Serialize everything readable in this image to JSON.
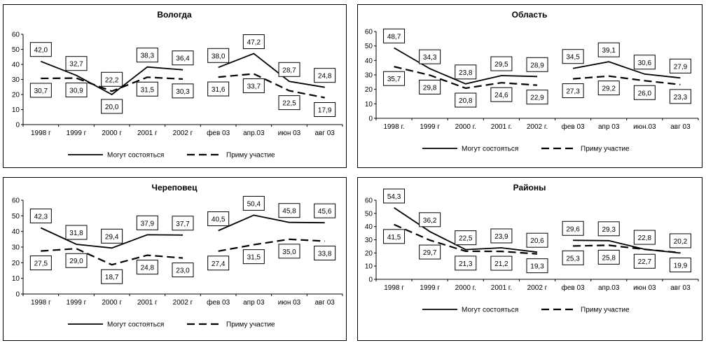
{
  "chart_data": [
    {
      "type": "line",
      "title": "Вологда",
      "categories": [
        "1998 г",
        "1999 г",
        "2000 г",
        "2001 г",
        "2002 г",
        "фев 03",
        "апр.03",
        "июн 03",
        "авг 03"
      ],
      "ylim": [
        0,
        60
      ],
      "yticks": [
        "0",
        "10",
        "20",
        "30",
        "40",
        "50",
        "60"
      ],
      "series": [
        {
          "name": "Могут состояться",
          "style": "solid",
          "values": [
            42.0,
            32.7,
            20.0,
            38.3,
            36.4,
            38.0,
            47.2,
            28.7,
            24.8
          ],
          "labels": [
            "42,0",
            "32,7",
            "20,0",
            "38,3",
            "36,4",
            "38,0",
            "47,2",
            "28,7",
            "24,8"
          ]
        },
        {
          "name": "Приму участие",
          "style": "dashed",
          "values": [
            30.7,
            30.9,
            22.2,
            31.5,
            30.3,
            31.6,
            33.7,
            22.5,
            17.9
          ],
          "labels": [
            "30,7",
            "30,9",
            "22,2",
            "31,5",
            "30,3",
            "31,6",
            "33,7",
            "22,5",
            "17,9"
          ]
        }
      ],
      "legend": [
        "Могут состояться",
        "Приму участие"
      ]
    },
    {
      "type": "line",
      "title": "Область",
      "categories": [
        "1998 г.",
        "1999 г",
        "2000 г.",
        "2001 г.",
        "2002 г.",
        "фев 03",
        "апр 03",
        "июн.03",
        "авг 03"
      ],
      "ylim": [
        0,
        60
      ],
      "yticks": [
        "0",
        "10",
        "20",
        "30",
        "40",
        "50",
        "60"
      ],
      "series": [
        {
          "name": "Могут состояться",
          "style": "solid",
          "values": [
            48.7,
            34.3,
            23.8,
            29.5,
            28.9,
            34.5,
            39.1,
            30.6,
            27.9
          ],
          "labels": [
            "48,7",
            "34,3",
            "23,8",
            "29,5",
            "28,9",
            "34,5",
            "39,1",
            "30,6",
            "27,9"
          ]
        },
        {
          "name": "Приму участие",
          "style": "dashed",
          "values": [
            35.7,
            29.8,
            20.8,
            24.6,
            22.9,
            27.3,
            29.2,
            26.0,
            23.3
          ],
          "labels": [
            "35,7",
            "29,8",
            "20,8",
            "24,6",
            "22,9",
            "27,3",
            "29,2",
            "26,0",
            "23,3"
          ]
        }
      ],
      "legend": [
        "Могут состояться",
        "Приму участие"
      ]
    },
    {
      "type": "line",
      "title": "Череповец",
      "categories": [
        "1998 г",
        "1999 г",
        "2000 г",
        "2001 г",
        "2002 г",
        "фев 03",
        "апр 03",
        "июн 03",
        "авг 03"
      ],
      "ylim": [
        0,
        60
      ],
      "yticks": [
        "0",
        "10",
        "20",
        "30",
        "40",
        "50",
        "60"
      ],
      "series": [
        {
          "name": "Могут состояться",
          "style": "solid",
          "values": [
            42.3,
            31.8,
            29.4,
            37.9,
            37.7,
            40.5,
            50.4,
            45.8,
            45.6
          ],
          "labels": [
            "42,3",
            "31,8",
            "29,4",
            "37,9",
            "37,7",
            "40,5",
            "50,4",
            "45,8",
            "45,6"
          ]
        },
        {
          "name": "Приму участие",
          "style": "dashed",
          "values": [
            27.5,
            29.0,
            18.7,
            24.8,
            23.0,
            27.4,
            31.5,
            35.0,
            33.8
          ],
          "labels": [
            "27,5",
            "29,0",
            "18,7",
            "24,8",
            "23,0",
            "27,4",
            "31,5",
            "35,0",
            "33,8"
          ]
        }
      ],
      "legend": [
        "Могут состояться",
        "Приму участие"
      ]
    },
    {
      "type": "line",
      "title": "Районы",
      "categories": [
        "1998 г",
        "1999 г",
        "2000 г.",
        "2001 г.",
        "2002 г",
        "фев 03",
        "апр.03",
        "июн 03",
        "авг 03"
      ],
      "ylim": [
        0,
        60
      ],
      "yticks": [
        "0",
        "10",
        "20",
        "30",
        "40",
        "50",
        "60"
      ],
      "series": [
        {
          "name": "Могут состояться",
          "style": "solid",
          "values": [
            54.3,
            36.2,
            22.5,
            23.9,
            20.6,
            29.6,
            29.3,
            22.8,
            19.9
          ],
          "labels": [
            "54,3",
            "36,2",
            "22,5",
            "23,9",
            "20,6",
            "29,6",
            "29,3",
            "22,8",
            "19,9"
          ]
        },
        {
          "name": "Приму участие",
          "style": "dashed",
          "values": [
            41.5,
            29.7,
            21.3,
            21.2,
            19.3,
            25.3,
            25.8,
            22.7,
            20.2
          ],
          "labels": [
            "41,5",
            "29,7",
            "21,3",
            "21,2",
            "19,3",
            "25,3",
            "25,8",
            "22,7",
            "20,2"
          ]
        }
      ],
      "legend": [
        "Могут состояться",
        "Приму участие"
      ]
    }
  ]
}
